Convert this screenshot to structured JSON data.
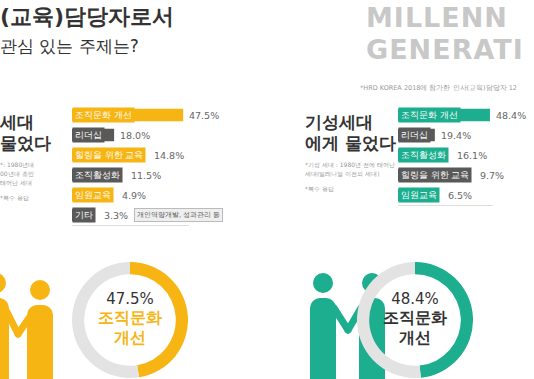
{
  "header": {
    "title": "(교육)담당자로서",
    "subtitle": "관심 있는 주제는?",
    "brand": [
      "MILLENN",
      "GENERATI"
    ],
    "note": "*HRD KOREA 2018에 참가한 인사(교육)담당자 12"
  },
  "chart_data": [
    {
      "type": "bar",
      "orientation": "horizontal",
      "title": "세대\n물었다",
      "subtitle": "*: 1980년대\n00년대 초반\n태어난 세대",
      "note": "*복수 응답",
      "categories": [
        "조직문화 개선",
        "리더십",
        "힐링을 위한 교육",
        "조직활성화",
        "임원교육",
        "기타"
      ],
      "values": [
        47.5,
        18.0,
        14.8,
        11.5,
        4.9,
        3.3
      ],
      "value_labels": [
        "47.5%",
        "18.0%",
        "14.8%",
        "11.5%",
        "4.9%",
        "3.3%"
      ],
      "colors": [
        "#f6b513",
        "#595959",
        "#f6b513",
        "#595959",
        "#f6b513",
        "#595959"
      ],
      "annotations": [
        {
          "category": "기타",
          "text": "개인역량개발, 성과관리 등"
        }
      ],
      "xlim": [
        0,
        50
      ],
      "data_labels": true,
      "tick_labels": false,
      "grid": false
    },
    {
      "type": "bar",
      "orientation": "horizontal",
      "title": "기성세대\n에게 물었다",
      "subtitle": "*기성 세대 : 1980년 전에 태어난\n세대(밀레니얼 이전의 세대)",
      "note": "*복수 응답",
      "categories": [
        "조직문화 개선",
        "리더십",
        "조직활성화",
        "힐링을 위한 교육",
        "임원교육"
      ],
      "values": [
        48.4,
        19.4,
        16.1,
        9.7,
        6.5
      ],
      "value_labels": [
        "48.4%",
        "19.4%",
        "16.1%",
        "9.7%",
        "6.5%"
      ],
      "colors": [
        "#1cae8e",
        "#595959",
        "#1cae8e",
        "#595959",
        "#1cae8e"
      ],
      "xlim": [
        0,
        50
      ],
      "data_labels": true,
      "tick_labels": false,
      "grid": false
    }
  ],
  "donuts": [
    {
      "type": "pie",
      "value": 47.5,
      "label": "47.5%",
      "text": "조직문화\n개선",
      "color": "#f6b513"
    },
    {
      "type": "pie",
      "value": 48.4,
      "label": "48.4%",
      "text": "조직문화\n개선",
      "color": "#1cae8e"
    }
  ]
}
